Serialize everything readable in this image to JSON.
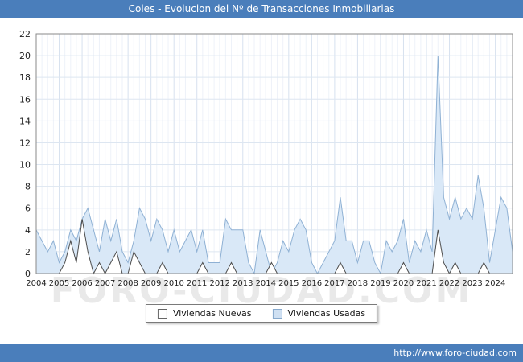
{
  "header": {
    "title": "Coles - Evolucion del Nº de Transacciones Inmobiliarias",
    "bg_color": "#4a7ebb"
  },
  "footer": {
    "url": "http://www.foro-ciudad.com"
  },
  "watermark": "FORO-CIUDAD.COM",
  "legend": {
    "items": [
      {
        "label": "Viviendas Nuevas",
        "fill": "#ffffff",
        "border": "#666666"
      },
      {
        "label": "Viviendas Usadas",
        "fill": "#cfe0f2",
        "border": "#87a9cc"
      }
    ]
  },
  "chart_data": {
    "type": "area",
    "title": "Coles - Evolucion del Nº de Transacciones Inmobiliarias",
    "xlabel": "",
    "ylabel": "",
    "ylim": [
      0,
      22
    ],
    "ytick_step": 2,
    "grid": true,
    "legend_position": "bottom",
    "x_years": [
      2004,
      2005,
      2006,
      2007,
      2008,
      2009,
      2010,
      2011,
      2012,
      2013,
      2014,
      2015,
      2016,
      2017,
      2018,
      2019,
      2020,
      2021,
      2022,
      2023,
      2024
    ],
    "points_per_year": 4,
    "series": [
      {
        "name": "Viviendas Usadas",
        "fill": "#d9e8f7",
        "stroke": "#8fb1d4",
        "values": [
          4,
          3,
          2,
          3,
          1,
          2,
          4,
          3,
          5,
          6,
          4,
          2,
          5,
          3,
          5,
          2,
          1,
          3,
          6,
          5,
          3,
          5,
          4,
          2,
          4,
          2,
          3,
          4,
          2,
          4,
          1,
          1,
          1,
          5,
          4,
          4,
          4,
          1,
          0,
          4,
          2,
          0,
          1,
          3,
          2,
          4,
          5,
          4,
          1,
          0,
          1,
          2,
          3,
          7,
          3,
          3,
          1,
          3,
          3,
          1,
          0,
          3,
          2,
          3,
          5,
          1,
          3,
          2,
          4,
          2,
          20,
          7,
          5,
          7,
          5,
          6,
          5,
          9,
          6,
          1,
          4,
          7,
          6,
          2
        ]
      },
      {
        "name": "Viviendas Nuevas",
        "fill": "#ffffff",
        "stroke": "#4d4d4d",
        "values": [
          0,
          0,
          0,
          0,
          0,
          1,
          3,
          1,
          5,
          2,
          0,
          1,
          0,
          1,
          2,
          0,
          0,
          2,
          1,
          0,
          0,
          0,
          1,
          0,
          0,
          0,
          0,
          0,
          0,
          1,
          0,
          0,
          0,
          0,
          1,
          0,
          0,
          0,
          0,
          0,
          0,
          1,
          0,
          0,
          0,
          0,
          0,
          0,
          0,
          0,
          0,
          0,
          0,
          1,
          0,
          0,
          0,
          0,
          0,
          0,
          0,
          0,
          0,
          0,
          1,
          0,
          0,
          0,
          0,
          0,
          4,
          1,
          0,
          1,
          0,
          0,
          0,
          0,
          1,
          0,
          0,
          0,
          0,
          0
        ]
      }
    ]
  }
}
